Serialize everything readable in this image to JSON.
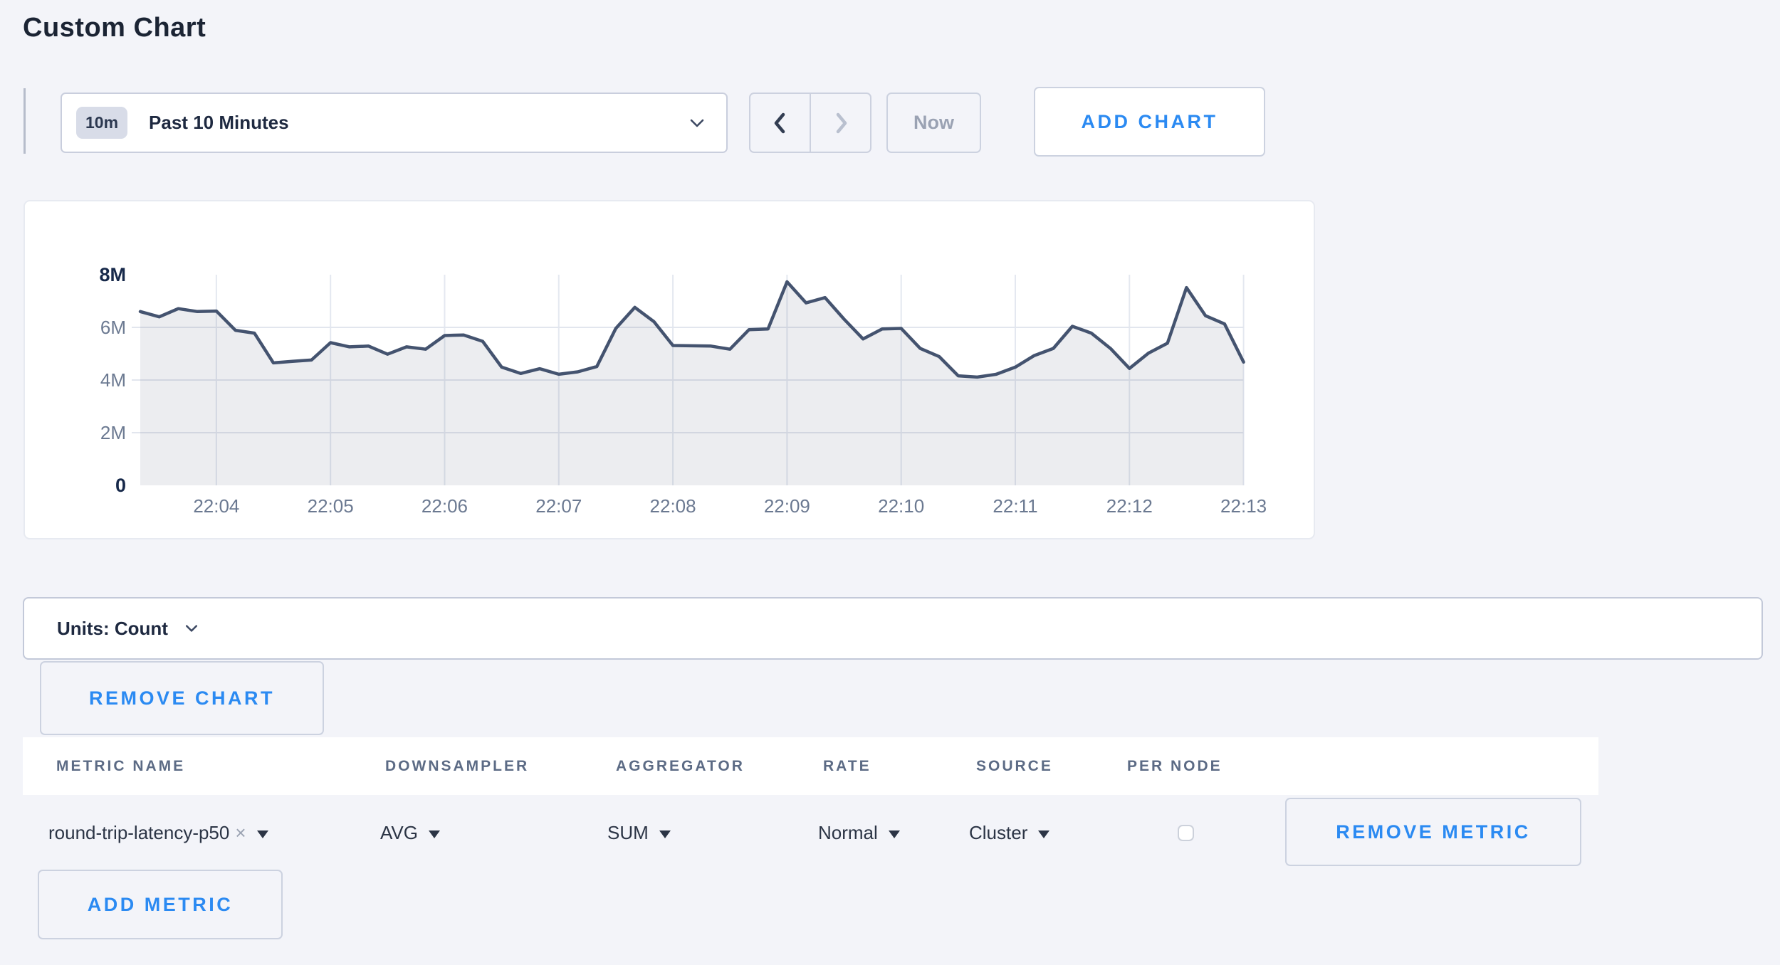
{
  "page": {
    "title": "Custom Chart",
    "background": "#f3f4f9"
  },
  "toolbar": {
    "range_badge": "10m",
    "range_label": "Past 10 Minutes",
    "now_label": "Now",
    "add_chart_label": "ADD CHART"
  },
  "chart_data": {
    "type": "area",
    "title": "",
    "xlabel": "",
    "ylabel": "",
    "unit": "count",
    "ylim": [
      0,
      8000000
    ],
    "y_tick_labels": [
      "0",
      "2M",
      "4M",
      "6M",
      "8M"
    ],
    "x_tick_labels": [
      "22:04",
      "22:05",
      "22:06",
      "22:07",
      "22:08",
      "22:09",
      "22:10",
      "22:11",
      "22:12",
      "22:13"
    ],
    "series_name": "round-trip-latency-p50 (SUM of AVG)",
    "start_time": "22:03:20",
    "sample_interval_seconds": 10,
    "values_millions": [
      6.6,
      6.4,
      6.71,
      6.6,
      6.62,
      5.89,
      5.78,
      4.65,
      4.71,
      4.76,
      5.42,
      5.26,
      5.29,
      4.98,
      5.26,
      5.17,
      5.69,
      5.71,
      5.47,
      4.49,
      4.25,
      4.43,
      4.22,
      4.31,
      4.51,
      5.96,
      6.76,
      6.22,
      5.31,
      5.3,
      5.29,
      5.17,
      5.91,
      5.94,
      7.73,
      6.93,
      7.13,
      6.31,
      5.56,
      5.94,
      5.96,
      5.2,
      4.89,
      4.16,
      4.11,
      4.22,
      4.49,
      4.93,
      5.2,
      6.04,
      5.78,
      5.2,
      4.44,
      5.02,
      5.4,
      7.51,
      6.44,
      6.13,
      4.68
    ],
    "grid": true,
    "legend": "none",
    "line_color": "#44536f",
    "fill_color": "rgba(68,83,111,0.10)",
    "gridline_color": "#e4e8f0",
    "tick_label_color": "#6b7991",
    "bold_tick_label_color": "#17294a"
  },
  "units_bar": {
    "label": "Units: Count"
  },
  "chart_actions": {
    "remove_chart_label": "REMOVE CHART"
  },
  "metrics_table": {
    "headers": [
      "METRIC NAME",
      "DOWNSAMPLER",
      "AGGREGATOR",
      "RATE",
      "SOURCE",
      "PER NODE"
    ],
    "rows": [
      {
        "metric_name": "round-trip-latency-p50",
        "remove_tag": "×",
        "downsampler": "AVG",
        "aggregator": "SUM",
        "rate": "Normal",
        "source": "Cluster",
        "per_node_checked": false,
        "remove_label": "REMOVE METRIC"
      }
    ],
    "add_metric_label": "ADD METRIC"
  },
  "icons": {
    "time_range_chevron": "chevron-down",
    "units_chevron": "chevron-down",
    "prev": "chevron-left",
    "next": "chevron-right",
    "metric_clear": "x-close",
    "dropdown_caret": "triangle-down"
  },
  "colors": {
    "accent_blue": "#2b8af2",
    "page_bg": "#f3f4f9",
    "muted_text": "#9aa2b3"
  }
}
